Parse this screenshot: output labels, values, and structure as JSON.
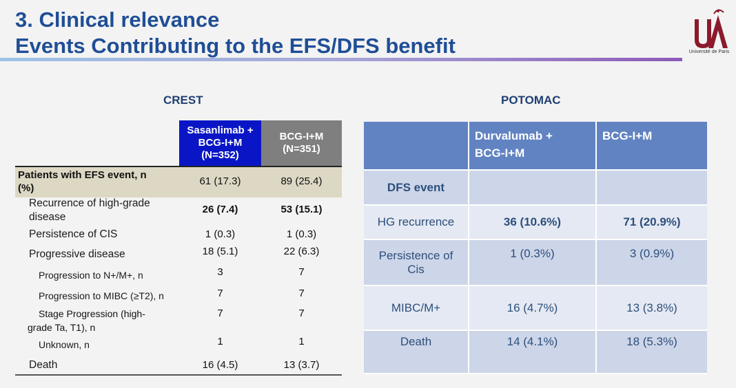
{
  "header": {
    "line1": "3. Clinical relevance",
    "line2": "Events Contributing to the EFS/DFS benefit",
    "logo_caption": "Université de Paris"
  },
  "crest": {
    "title": "CREST",
    "col1": [
      "Sasanlimab +",
      "BCG-I+M",
      "(N=352)"
    ],
    "col2": [
      "BCG-I+M",
      "(N=351)"
    ],
    "rows": [
      {
        "label": "Patients with EFS event, n",
        "label2": "(%)",
        "v1": "61 (17.3)",
        "v2": "89 (25.4)"
      },
      {
        "label": "Recurrence of high-grade",
        "label2": "disease",
        "v1": "26 (7.4)",
        "v2": "53 (15.1)"
      },
      {
        "label": "Persistence of CIS",
        "v1": "1 (0.3)",
        "v2": "1 (0.3)"
      },
      {
        "label": "Progressive disease",
        "v1": "18 (5.1)",
        "v2": "22 (6.3)"
      },
      {
        "label": "Progression to N+/M+, n",
        "v1": "3",
        "v2": "7"
      },
      {
        "label": "Progression to MIBC (≥T2), n",
        "v1": "7",
        "v2": "7"
      },
      {
        "label": "Stage Progression (high-",
        "label2": "grade Ta, T1), n",
        "v1": "7",
        "v2": "7"
      },
      {
        "label": "Unknown, n",
        "v1": "1",
        "v2": "1"
      },
      {
        "label": "Death",
        "v1": "16 (4.5)",
        "v2": "13 (3.7)"
      }
    ]
  },
  "potomac": {
    "title": "POTOMAC",
    "head1": [
      "Durvalumab +",
      "BCG-I+M"
    ],
    "head2": "BCG-I+M",
    "rows": [
      {
        "label": "DFS event",
        "v1": "",
        "v2": ""
      },
      {
        "label": "HG recurrence",
        "v1": "36 (10.6%)",
        "v2": "71 (20.9%)"
      },
      {
        "label": "Persistence of",
        "label2": "Cis",
        "v1": "1 (0.3%)",
        "v2": "3 (0.9%)"
      },
      {
        "label": "MIBC/M+",
        "v1": "16 (4.7%)",
        "v2": "13 (3.8%)"
      },
      {
        "label": "Death",
        "v1": "14 (4.1%)",
        "v2": "18 (5.3%)"
      }
    ]
  }
}
